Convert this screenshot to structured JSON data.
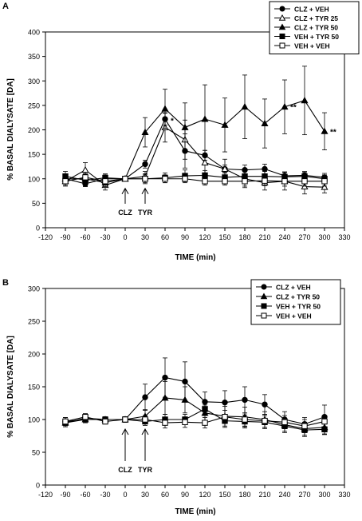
{
  "chart_data": [
    {
      "panel": "A",
      "type": "line",
      "xlabel": "TIME (min)",
      "ylabel": "% BASAL DIALYSATE [DA]",
      "xlim": [
        -120,
        330
      ],
      "ylim": [
        0,
        400
      ],
      "xticks": [
        -120,
        -90,
        -60,
        -30,
        0,
        30,
        60,
        90,
        120,
        150,
        180,
        210,
        240,
        270,
        300,
        330
      ],
      "yticks": [
        0,
        50,
        100,
        150,
        200,
        250,
        300,
        350,
        400
      ],
      "legend_position": "top-right",
      "annotations": [
        {
          "label": "CLZ",
          "x": 0,
          "kind": "arrow"
        },
        {
          "label": "TYR",
          "x": 30,
          "kind": "arrow"
        },
        {
          "label": "*",
          "x": 60,
          "y": 220
        },
        {
          "label": "**",
          "x": 240,
          "y": 247
        },
        {
          "label": "**",
          "x": 300,
          "y": 197
        }
      ],
      "series": [
        {
          "name": "CLZ + VEH",
          "marker": "circle-filled",
          "x": [
            -90,
            -60,
            -30,
            0,
            30,
            60,
            90,
            120,
            150,
            180,
            210,
            240,
            270,
            300
          ],
          "values": [
            100,
            90,
            100,
            100,
            130,
            222,
            157,
            148,
            120,
            118,
            120,
            106,
            107,
            103
          ],
          "errors": [
            8,
            6,
            8,
            4,
            8,
            12,
            35,
            10,
            8,
            10,
            10,
            8,
            8,
            8
          ]
        },
        {
          "name": "CLZ + TYR 25",
          "marker": "triangle-open",
          "x": [
            -90,
            -60,
            -30,
            0,
            30,
            60,
            90,
            120,
            150,
            180,
            210,
            240,
            270,
            300
          ],
          "values": [
            95,
            118,
            87,
            100,
            105,
            205,
            180,
            133,
            120,
            100,
            92,
            95,
            84,
            83
          ],
          "errors": [
            10,
            15,
            10,
            5,
            10,
            30,
            40,
            25,
            20,
            18,
            15,
            18,
            15,
            12
          ]
        },
        {
          "name": "CLZ + TYR 50",
          "marker": "triangle-filled",
          "x": [
            -90,
            -60,
            -30,
            0,
            30,
            60,
            90,
            120,
            150,
            180,
            210,
            240,
            270,
            300
          ],
          "values": [
            100,
            100,
            92,
            100,
            195,
            243,
            205,
            222,
            210,
            247,
            213,
            247,
            260,
            197
          ],
          "errors": [
            10,
            10,
            8,
            5,
            30,
            40,
            50,
            70,
            55,
            65,
            50,
            55,
            70,
            38
          ]
        },
        {
          "name": "VEH + TYR 50",
          "marker": "square-filled",
          "x": [
            -90,
            -60,
            -30,
            0,
            30,
            60,
            90,
            120,
            150,
            180,
            210,
            240,
            270,
            300
          ],
          "values": [
            105,
            97,
            102,
            100,
            100,
            102,
            106,
            107,
            103,
            105,
            105,
            104,
            105,
            100
          ],
          "errors": [
            10,
            12,
            8,
            5,
            10,
            10,
            12,
            10,
            10,
            12,
            10,
            10,
            8,
            8
          ]
        },
        {
          "name": "VEH + VEH",
          "marker": "square-open",
          "x": [
            -90,
            -60,
            -30,
            0,
            30,
            60,
            90,
            120,
            150,
            180,
            210,
            240,
            270,
            300
          ],
          "values": [
            95,
            103,
            95,
            100,
            100,
            100,
            100,
            95,
            95,
            95,
            96,
            95,
            95,
            95
          ],
          "errors": [
            8,
            10,
            8,
            5,
            8,
            8,
            8,
            8,
            8,
            10,
            10,
            10,
            10,
            10
          ]
        }
      ]
    },
    {
      "panel": "B",
      "type": "line",
      "xlabel": "TIME (min)",
      "ylabel": "% BASAL DIALYSATE [DA]",
      "xlim": [
        -120,
        330
      ],
      "ylim": [
        0,
        300
      ],
      "xticks": [
        -120,
        -90,
        -60,
        -30,
        0,
        30,
        60,
        90,
        120,
        150,
        180,
        210,
        240,
        270,
        300,
        330
      ],
      "yticks": [
        0,
        50,
        100,
        150,
        200,
        250,
        300
      ],
      "legend_position": "top-right",
      "annotations": [
        {
          "label": "CLZ",
          "x": 0,
          "kind": "arrow"
        },
        {
          "label": "TYR",
          "x": 30,
          "kind": "arrow"
        }
      ],
      "series": [
        {
          "name": "CLZ + VEH",
          "marker": "circle-filled",
          "x": [
            -90,
            -60,
            -30,
            0,
            30,
            60,
            90,
            120,
            150,
            180,
            210,
            240,
            270,
            300
          ],
          "values": [
            97,
            100,
            100,
            100,
            134,
            164,
            158,
            127,
            126,
            130,
            123,
            100,
            93,
            104
          ],
          "errors": [
            6,
            5,
            4,
            4,
            20,
            30,
            30,
            15,
            18,
            20,
            15,
            12,
            10,
            18
          ]
        },
        {
          "name": "CLZ + TYR 50",
          "marker": "triangle-filled",
          "x": [
            -90,
            -60,
            -30,
            0,
            30,
            60,
            90,
            120,
            150,
            180,
            210,
            240,
            270,
            300
          ],
          "values": [
            95,
            100,
            100,
            100,
            105,
            133,
            130,
            110,
            105,
            104,
            100,
            92,
            86,
            88
          ],
          "errors": [
            6,
            5,
            4,
            4,
            10,
            25,
            20,
            12,
            15,
            15,
            12,
            10,
            10,
            10
          ]
        },
        {
          "name": "VEH + TYR 50",
          "marker": "square-filled",
          "x": [
            -90,
            -60,
            -30,
            0,
            30,
            60,
            90,
            120,
            150,
            180,
            210,
            240,
            270,
            300
          ],
          "values": [
            95,
            102,
            100,
            100,
            97,
            100,
            100,
            116,
            98,
            97,
            96,
            90,
            84,
            85
          ],
          "errors": [
            6,
            5,
            4,
            4,
            6,
            8,
            8,
            10,
            10,
            10,
            10,
            10,
            10,
            8
          ]
        },
        {
          "name": "VEH + VEH",
          "marker": "square-open",
          "x": [
            -90,
            -60,
            -30,
            0,
            30,
            60,
            90,
            120,
            150,
            180,
            210,
            240,
            270,
            300
          ],
          "values": [
            97,
            104,
            97,
            100,
            100,
            95,
            96,
            95,
            104,
            100,
            98,
            96,
            90,
            97
          ],
          "errors": [
            6,
            5,
            4,
            4,
            6,
            8,
            8,
            8,
            10,
            10,
            10,
            10,
            10,
            8
          ]
        }
      ]
    }
  ]
}
